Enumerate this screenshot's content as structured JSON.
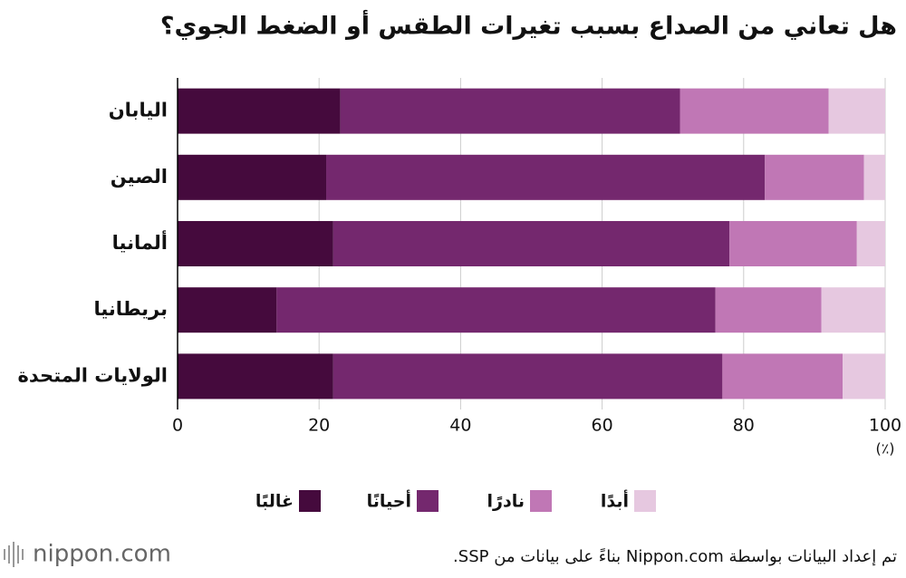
{
  "chart_data": {
    "type": "stacked-bar-horizontal",
    "title": "هل تعاني من الصداع بسبب تغيرات الطقس أو الضغط الجوي؟",
    "categories": [
      "اليابان",
      "الصين",
      "ألمانيا",
      "بريطانيا",
      "الولايات المتحدة"
    ],
    "series": [
      {
        "name": "غالبًا",
        "color": "#450a3d",
        "values": [
          23,
          21,
          22,
          14,
          22
        ]
      },
      {
        "name": "أحيانًا",
        "color": "#74286e",
        "values": [
          48,
          62,
          56,
          62,
          55
        ]
      },
      {
        "name": "نادرًا",
        "color": "#c077b5",
        "values": [
          21,
          14,
          18,
          15,
          17
        ]
      },
      {
        "name": "أبدًا",
        "color": "#e6c8e0",
        "values": [
          8,
          3,
          4,
          9,
          6
        ]
      }
    ],
    "xlim": [
      0,
      100
    ],
    "xticks": [
      0,
      20,
      40,
      60,
      80,
      100
    ],
    "x_unit": "(٪)",
    "grid": true,
    "legend": "bottom",
    "source": "تم إعداد البيانات بواسطة Nippon.com بناءً على بيانات من SSP.",
    "logo": "nippon.com"
  }
}
